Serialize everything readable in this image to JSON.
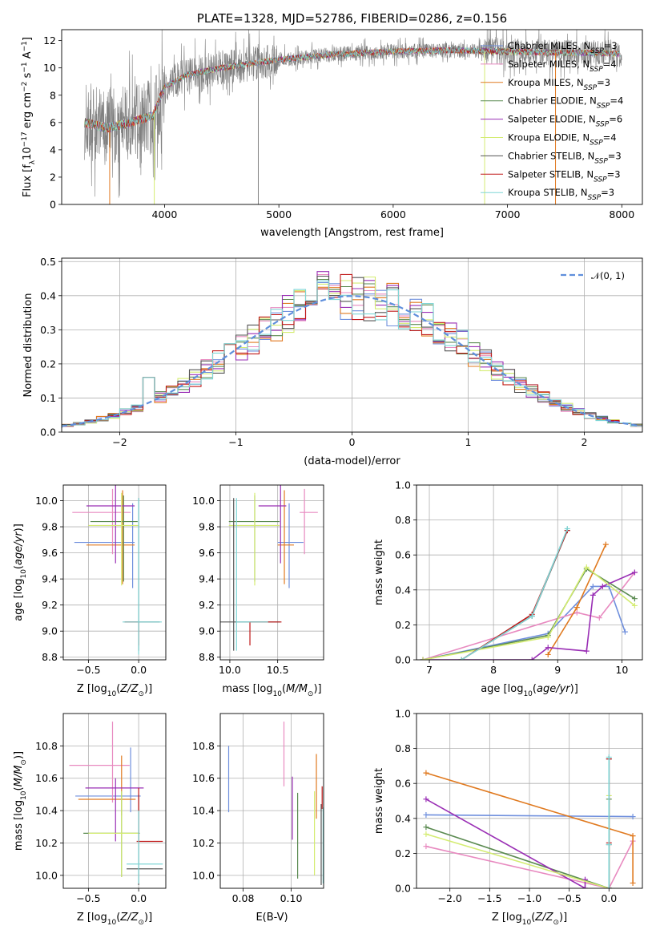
{
  "colors": {
    "Chabrier MILES": "#6f8fdd",
    "Salpeter MILES": "#e88ac0",
    "Kroupa MILES": "#e07a20",
    "Chabrier ELODIE": "#5a8a50",
    "Salpeter ELODIE": "#9a2fb5",
    "Kroupa ELODIE": "#d4ec72",
    "Chabrier STELIB": "#555555",
    "Salpeter STELIB": "#c01818",
    "Kroupa STELIB": "#7fd6d6",
    "data": "#808080",
    "normal": "#5f8fdc"
  },
  "chart_data": [
    {
      "id": "spectrum",
      "type": "line",
      "title": "PLATE=1328, MJD=52786, FIBERID=0286, z=0.156",
      "xlabel": "wavelength [Angstrom, rest frame]",
      "ylabel": "Flux [f_λ 10^-17 erg cm^-2 s^-1 A^-1]",
      "xlim": [
        3100,
        8180
      ],
      "ylim": [
        0,
        12.8
      ],
      "xticks": [
        4000,
        5000,
        6000,
        7000,
        8000
      ],
      "yticks": [
        0,
        2,
        4,
        6,
        8,
        10,
        12
      ],
      "grid": false,
      "legend": "top-right",
      "continuum": {
        "x": [
          3300,
          3500,
          3700,
          3900,
          4000,
          4200,
          4500,
          5000,
          5500,
          6000,
          6500,
          7000,
          7500,
          7800,
          8000
        ],
        "y": [
          6.0,
          5.6,
          6.0,
          6.5,
          8.6,
          9.5,
          10.0,
          10.6,
          11.0,
          11.2,
          11.3,
          11.2,
          11.1,
          11.1,
          11.0
        ]
      },
      "series": [
        {
          "name": "Chabrier MILES",
          "label": "Chabrier MILES, N_SSP=3"
        },
        {
          "name": "Salpeter MILES",
          "label": "Salpeter MILES, N_SSP=4"
        },
        {
          "name": "Kroupa MILES",
          "label": "Kroupa MILES, N_SSP=3"
        },
        {
          "name": "Chabrier ELODIE",
          "label": "Chabrier ELODIE, N_SSP=4"
        },
        {
          "name": "Salpeter ELODIE",
          "label": "Salpeter ELODIE, N_SSP=6"
        },
        {
          "name": "Kroupa ELODIE",
          "label": "Kroupa ELODIE, N_SSP=4"
        },
        {
          "name": "Chabrier STELIB",
          "label": "Chabrier STELIB, N_SSP=3"
        },
        {
          "name": "Salpeter STELIB",
          "label": "Salpeter STELIB, N_SSP=3"
        },
        {
          "name": "Kroupa STELIB",
          "label": "Kroupa STELIB, N_SSP=3"
        }
      ]
    },
    {
      "id": "residuals",
      "type": "line",
      "xlabel": "(data-model)/error",
      "ylabel": "Normed distribution",
      "xlim": [
        -2.5,
        2.5
      ],
      "ylim": [
        0,
        0.51
      ],
      "xticks": [
        -2,
        -1,
        0,
        1,
        2
      ],
      "yticks": [
        0.0,
        0.1,
        0.2,
        0.3,
        0.4,
        0.5
      ],
      "grid": true,
      "legend": "top-right",
      "normal_label": "𝒩(0, 1)",
      "bin_width": 0.1
    },
    {
      "id": "age_vs_Z",
      "type": "scatter",
      "xlabel": "Z [log10(Z/Z⊙)]",
      "ylabel": "age  [log10(age/yr)]",
      "xlim": [
        -0.75,
        0.27
      ],
      "ylim": [
        8.78,
        10.12
      ],
      "xticks": [
        -0.5,
        0.0
      ],
      "yticks": [
        8.8,
        9.0,
        9.2,
        9.4,
        9.6,
        9.8,
        10.0
      ],
      "grid": true,
      "points": [
        {
          "series": "Chabrier MILES",
          "x": -0.06,
          "xerr": [
            0.58,
            0.02
          ],
          "y": 9.68,
          "yerr": [
            0.35,
            0.3
          ]
        },
        {
          "series": "Salpeter MILES",
          "x": -0.26,
          "xerr": [
            0.4,
            0.18
          ],
          "y": 9.91,
          "yerr": [
            0.32,
            0.18
          ]
        },
        {
          "series": "Kroupa MILES",
          "x": -0.16,
          "xerr": [
            0.36,
            0.12
          ],
          "y": 9.66,
          "yerr": [
            0.3,
            0.42
          ]
        },
        {
          "series": "Chabrier ELODIE",
          "x": -0.15,
          "xerr": [
            0.33,
            0.14
          ],
          "y": 9.84,
          "yerr": [
            0.46,
            0.2
          ]
        },
        {
          "series": "Salpeter ELODIE",
          "x": -0.23,
          "xerr": [
            0.29,
            0.19
          ],
          "y": 9.96,
          "yerr": [
            0.44,
            0.17
          ]
        },
        {
          "series": "Kroupa ELODIE",
          "x": -0.17,
          "xerr": [
            0.33,
            0.17
          ],
          "y": 9.81,
          "yerr": [
            0.46,
            0.25
          ]
        },
        {
          "series": "Chabrier STELIB",
          "x": 0.0,
          "xerr": [
            0.14,
            0.21
          ],
          "y": 9.07,
          "yerr": [
            0.22,
            0.95
          ]
        },
        {
          "series": "Salpeter STELIB",
          "x": 0.0,
          "xerr": [
            0.14,
            0.0
          ],
          "y": 9.07,
          "yerr": [
            0.18,
            0.0
          ]
        },
        {
          "series": "Kroupa STELIB",
          "x": 0.0,
          "xerr": [
            0.16,
            0.23
          ],
          "y": 9.07,
          "yerr": [
            0.25,
            0.95
          ]
        }
      ]
    },
    {
      "id": "age_vs_mass",
      "type": "scatter",
      "xlabel": "mass [log10(M/M⊙)]",
      "xlim": [
        9.9,
        10.98
      ],
      "ylim": [
        8.78,
        10.12
      ],
      "xticks": [
        10.0,
        10.5
      ],
      "yticks": [
        8.8,
        9.0,
        9.2,
        9.4,
        9.6,
        9.8,
        10.0
      ],
      "grid": true,
      "points": [
        {
          "series": "Chabrier MILES",
          "x": 10.62,
          "xerr": [
            0.12,
            0.15
          ],
          "y": 9.68,
          "yerr": [
            0.35,
            0.3
          ]
        },
        {
          "series": "Salpeter MILES",
          "x": 10.78,
          "xerr": [
            0.05,
            0.14
          ],
          "y": 9.91,
          "yerr": [
            0.32,
            0.18
          ]
        },
        {
          "series": "Kroupa MILES",
          "x": 10.57,
          "xerr": [
            0.07,
            0.1
          ],
          "y": 9.66,
          "yerr": [
            0.3,
            0.42
          ]
        },
        {
          "series": "Chabrier ELODIE",
          "x": 10.26,
          "xerr": [
            0.27,
            0.26
          ],
          "y": 9.84,
          "yerr": [
            0.46,
            0.2
          ]
        },
        {
          "series": "Salpeter ELODIE",
          "x": 10.53,
          "xerr": [
            0.23,
            0.06
          ],
          "y": 9.96,
          "yerr": [
            0.44,
            0.17
          ]
        },
        {
          "series": "Kroupa ELODIE",
          "x": 10.26,
          "xerr": [
            0.27,
            0.26
          ],
          "y": 9.81,
          "yerr": [
            0.46,
            0.25
          ]
        },
        {
          "series": "Chabrier STELIB",
          "x": 10.04,
          "xerr": [
            0.14,
            0.49
          ],
          "y": 9.07,
          "yerr": [
            0.22,
            0.95
          ]
        },
        {
          "series": "Salpeter STELIB",
          "x": 10.21,
          "xerr": [
            0.0,
            0.33
          ],
          "y": 9.07,
          "yerr": [
            0.18,
            0.0
          ]
        },
        {
          "series": "Kroupa STELIB",
          "x": 10.07,
          "xerr": [
            0.0,
            0.33
          ],
          "y": 9.07,
          "yerr": [
            0.22,
            0.95
          ]
        }
      ]
    },
    {
      "id": "mass_weight_vs_age",
      "type": "line",
      "xlabel": "age  [log10(age/yr)]",
      "ylabel": "mass weight",
      "xlim": [
        6.8,
        10.32
      ],
      "ylim": [
        0,
        1.0
      ],
      "xticks": [
        7,
        8,
        9,
        10
      ],
      "yticks": [
        0.0,
        0.2,
        0.4,
        0.6,
        0.8,
        1.0
      ],
      "grid": true,
      "series": [
        {
          "name": "Chabrier MILES",
          "x": [
            6.9,
            8.85,
            9.55,
            9.8,
            10.05
          ],
          "y": [
            0.0,
            0.15,
            0.42,
            0.42,
            0.16
          ]
        },
        {
          "name": "Salpeter MILES",
          "x": [
            6.9,
            9.3,
            9.65,
            10.2
          ],
          "y": [
            0.0,
            0.27,
            0.24,
            0.5
          ]
        },
        {
          "name": "Kroupa MILES",
          "x": [
            8.85,
            9.3,
            9.75
          ],
          "y": [
            0.03,
            0.3,
            0.66
          ]
        },
        {
          "name": "Chabrier ELODIE",
          "x": [
            6.9,
            8.85,
            9.45,
            10.2
          ],
          "y": [
            0.0,
            0.14,
            0.52,
            0.35
          ]
        },
        {
          "name": "Salpeter ELODIE",
          "x": [
            6.9,
            8.6,
            8.85,
            9.45,
            9.55,
            9.7,
            10.2
          ],
          "y": [
            0.0,
            0.0,
            0.07,
            0.05,
            0.37,
            0.42,
            0.5
          ]
        },
        {
          "name": "Kroupa ELODIE",
          "x": [
            6.9,
            8.85,
            9.45,
            10.2
          ],
          "y": [
            0.0,
            0.13,
            0.53,
            0.31
          ]
        },
        {
          "name": "Chabrier STELIB",
          "x": [
            7.5,
            8.6,
            9.15
          ],
          "y": [
            0.0,
            0.25,
            0.74
          ]
        },
        {
          "name": "Salpeter STELIB",
          "x": [
            7.5,
            8.6,
            9.15
          ],
          "y": [
            0.0,
            0.26,
            0.74
          ]
        },
        {
          "name": "Kroupa STELIB",
          "x": [
            7.5,
            8.6,
            9.15
          ],
          "y": [
            0.0,
            0.25,
            0.75
          ]
        }
      ]
    },
    {
      "id": "mass_vs_Z",
      "type": "scatter",
      "xlabel": "Z [log10(Z/Z⊙)]",
      "ylabel": "mass [log10(M/M⊙)]",
      "xlim": [
        -0.75,
        0.27
      ],
      "ylim": [
        9.92,
        11.0
      ],
      "xticks": [
        -0.5,
        0.0
      ],
      "yticks": [
        10.0,
        10.2,
        10.4,
        10.6,
        10.8
      ],
      "grid": true,
      "points": [
        {
          "series": "Chabrier MILES",
          "x": -0.08,
          "xerr": [
            0.55,
            0.1
          ],
          "y": 10.49,
          "yerr": [
            0.1,
            0.3
          ]
        },
        {
          "series": "Salpeter MILES",
          "x": -0.26,
          "xerr": [
            0.43,
            0.17
          ],
          "y": 10.68,
          "yerr": [
            0.23,
            0.27
          ]
        },
        {
          "series": "Kroupa MILES",
          "x": -0.17,
          "xerr": [
            0.43,
            0.14
          ],
          "y": 10.47,
          "yerr": [
            0.1,
            0.27
          ]
        },
        {
          "series": "Chabrier ELODIE",
          "x": -0.17,
          "xerr": [
            0.38,
            0.18
          ],
          "y": 10.26,
          "yerr": [
            0.27,
            0.26
          ]
        },
        {
          "series": "Salpeter ELODIE",
          "x": -0.23,
          "xerr": [
            0.3,
            0.28
          ],
          "y": 10.54,
          "yerr": [
            0.33,
            0.06
          ]
        },
        {
          "series": "Kroupa ELODIE",
          "x": -0.17,
          "xerr": [
            0.33,
            0.17
          ],
          "y": 10.26,
          "yerr": [
            0.27,
            0.26
          ]
        },
        {
          "series": "Chabrier STELIB",
          "x": 0.0,
          "xerr": [
            0.12,
            0.24
          ],
          "y": 10.04,
          "yerr": [
            0.1,
            0.46
          ]
        },
        {
          "series": "Salpeter STELIB",
          "x": 0.0,
          "xerr": [
            0.02,
            0.24
          ],
          "y": 10.21,
          "yerr": [
            0.0,
            0.33
          ]
        },
        {
          "series": "Kroupa STELIB",
          "x": 0.0,
          "xerr": [
            0.12,
            0.24
          ],
          "y": 10.07,
          "yerr": [
            0.12,
            0.33
          ]
        }
      ]
    },
    {
      "id": "mass_vs_ebv",
      "type": "scatter",
      "xlabel": "E(B-V)",
      "xlim": [
        0.0705,
        0.1135
      ],
      "ylim": [
        9.92,
        11.0
      ],
      "xticks": [
        0.08,
        0.1
      ],
      "yticks": [
        10.0,
        10.2,
        10.4,
        10.6,
        10.8
      ],
      "grid": true,
      "points": [
        {
          "series": "Chabrier MILES",
          "x": 0.074,
          "y": 10.59,
          "yerr": [
            0.2,
            0.21
          ]
        },
        {
          "series": "Salpeter MILES",
          "x": 0.097,
          "y": 10.76,
          "yerr": [
            0.21,
            0.19
          ]
        },
        {
          "series": "Kroupa MILES",
          "x": 0.1105,
          "y": 10.45,
          "yerr": [
            0.1,
            0.3
          ]
        },
        {
          "series": "Chabrier ELODIE",
          "x": 0.1027,
          "y": 10.24,
          "yerr": [
            0.26,
            0.27
          ]
        },
        {
          "series": "Salpeter ELODIE",
          "x": 0.1005,
          "y": 10.44,
          "yerr": [
            0.22,
            0.17
          ]
        },
        {
          "series": "Kroupa ELODIE",
          "x": 0.1097,
          "y": 10.24,
          "yerr": [
            0.24,
            0.28
          ]
        },
        {
          "series": "Chabrier STELIB",
          "x": 0.1125,
          "y": 10.2,
          "yerr": [
            0.26,
            0.24
          ]
        },
        {
          "series": "Salpeter STELIB",
          "x": 0.1129,
          "y": 10.41,
          "yerr": [
            0.0,
            0.14
          ]
        },
        {
          "series": "Kroupa STELIB",
          "x": 0.1133,
          "y": 10.07,
          "yerr": [
            0.12,
            0.35
          ]
        }
      ]
    },
    {
      "id": "mass_weight_vs_Z",
      "type": "line",
      "xlabel": "Z [log10(Z/Z⊙)]",
      "ylabel": "mass weight",
      "xlim": [
        -2.42,
        0.42
      ],
      "ylim": [
        0,
        1.0
      ],
      "xticks": [
        -2.0,
        -1.5,
        -1.0,
        -0.5,
        0.0
      ],
      "yticks": [
        0.0,
        0.2,
        0.4,
        0.6,
        0.8,
        1.0
      ],
      "grid": true,
      "series": [
        {
          "name": "Chabrier MILES",
          "x": [
            -2.3,
            0.3
          ],
          "y": [
            0.42,
            0.41
          ]
        },
        {
          "name": "Salpeter MILES",
          "x": [
            -2.3,
            0.0,
            0.3
          ],
          "y": [
            0.24,
            0.0,
            0.27
          ]
        },
        {
          "name": "Kroupa MILES",
          "x": [
            -2.3,
            0.3,
            0.3
          ],
          "y": [
            0.66,
            0.3,
            0.03
          ]
        },
        {
          "name": "Chabrier ELODIE",
          "x": [
            -2.3,
            0.0,
            0.0
          ],
          "y": [
            0.35,
            0.0,
            0.51
          ]
        },
        {
          "name": "Salpeter ELODIE",
          "x": [
            -2.3,
            -0.3,
            -0.3
          ],
          "y": [
            0.51,
            0.0,
            0.05
          ]
        },
        {
          "name": "Kroupa ELODIE",
          "x": [
            -2.3,
            0.0,
            0.0
          ],
          "y": [
            0.31,
            0.0,
            0.53
          ]
        },
        {
          "name": "Chabrier STELIB",
          "x": [
            0.0,
            0.0,
            0.0
          ],
          "y": [
            0.0,
            0.25,
            0.74
          ]
        },
        {
          "name": "Salpeter STELIB",
          "x": [
            0.0,
            0.0,
            0.0
          ],
          "y": [
            0.0,
            0.26,
            0.74
          ]
        },
        {
          "name": "Kroupa STELIB",
          "x": [
            0.0,
            0.0,
            0.0
          ],
          "y": [
            0.0,
            0.25,
            0.75
          ]
        }
      ]
    }
  ]
}
